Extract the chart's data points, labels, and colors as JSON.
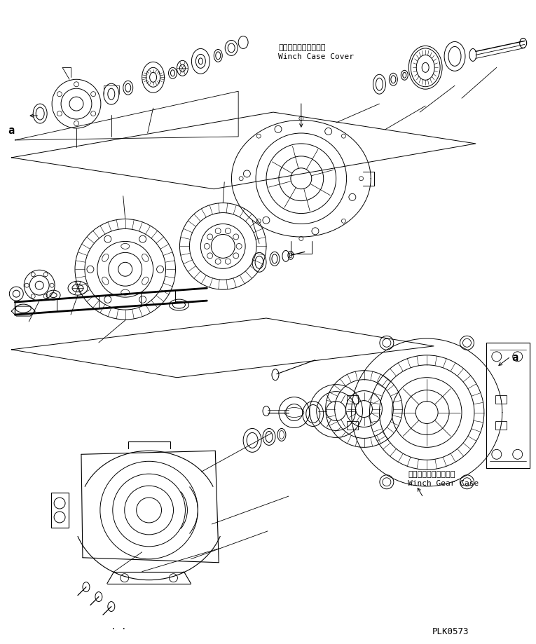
{
  "background_color": "#ffffff",
  "line_color": "#000000",
  "label1_jp": "ウインチケースカバー",
  "label1_en": "Winch Case Cover",
  "label2_jp": "ウインチギヤーケース",
  "label2_en": "Winch Gear Case",
  "label_a": "a",
  "code": "PLK0573",
  "fig_width": 7.65,
  "fig_height": 9.2,
  "dpi": 100
}
